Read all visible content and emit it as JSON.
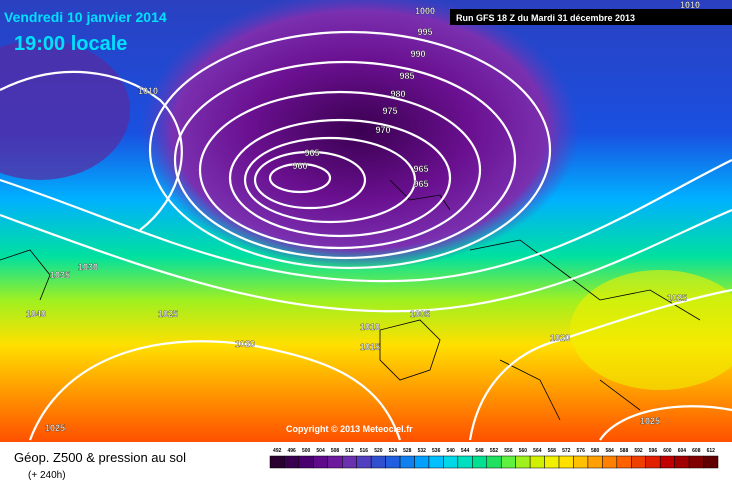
{
  "header": {
    "date": "Vendredi 10 janvier 2014",
    "time": "19:00 locale",
    "run": "Run GFS 18 Z du Mardi 31 décembre 2013"
  },
  "isobar_labels": [
    "1000",
    "995",
    "990",
    "985",
    "980",
    "975",
    "970",
    "965",
    "960",
    "965",
    "965",
    "1010",
    "1010",
    "1030",
    "1035",
    "1040",
    "1025",
    "1020",
    "1010",
    "1015",
    "1005",
    "1020",
    "1025",
    "1025",
    "1025"
  ],
  "copyright": "Copyright © 2013 Meteociel.fr",
  "legend": {
    "title": "Géop. Z500 & pression au sol",
    "subtitle": "(+ 240h)",
    "scale": [
      492,
      496,
      500,
      504,
      508,
      512,
      516,
      520,
      524,
      528,
      532,
      536,
      540,
      544,
      548,
      552,
      556,
      560,
      564,
      568,
      572,
      576,
      580,
      584,
      588,
      592,
      596,
      600,
      604,
      608,
      612
    ],
    "colors": [
      "#2a0030",
      "#3a0050",
      "#4b0070",
      "#5e0a8a",
      "#6e1a9e",
      "#6a30b0",
      "#5040c0",
      "#3050d0",
      "#2060e0",
      "#1080f0",
      "#00a0ff",
      "#00c0ff",
      "#00d8e8",
      "#00e0c0",
      "#00e090",
      "#20e060",
      "#60f040",
      "#a0f020",
      "#d0f000",
      "#f0f000",
      "#ffe000",
      "#ffc000",
      "#ffa000",
      "#ff8000",
      "#ff6000",
      "#f04000",
      "#e02000",
      "#c00000",
      "#a00000",
      "#800000",
      "#600000"
    ]
  }
}
